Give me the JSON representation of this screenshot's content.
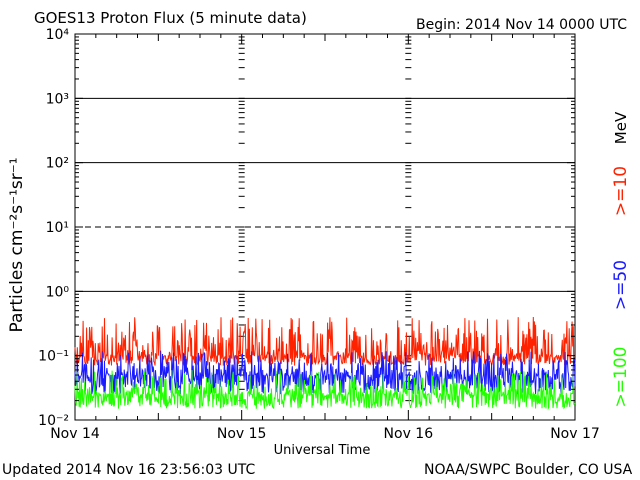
{
  "title": "GOES13 Proton Flux (5 minute data)",
  "begin_label": "Begin: 2014 Nov 14 0000 UTC",
  "updated_label": "Updated 2014 Nov 16 23:56:03 UTC",
  "credit_label": "NOAA/SWPC Boulder, CO USA",
  "chart_data": {
    "type": "line",
    "title": "GOES13 Proton Flux (5 minute data)",
    "xlabel": "Universal Time",
    "ylabel": "Particles cm⁻²s⁻¹sr⁻¹",
    "y_scale": "log",
    "ylim": [
      0.01,
      10000
    ],
    "y_ticks": [
      "10⁻²",
      "10⁻¹",
      "10⁰",
      "10¹",
      "10²",
      "10³",
      "10⁴"
    ],
    "x_ticks": [
      "Nov 14",
      "Nov 15",
      "Nov 16",
      "Nov 17"
    ],
    "xlim_days": [
      0,
      3
    ],
    "threshold_lines": [
      {
        "value": 1,
        "style": "solid"
      },
      {
        "value": 10,
        "style": "dashed"
      },
      {
        "value": 100,
        "style": "solid"
      },
      {
        "value": 1000,
        "style": "solid"
      }
    ],
    "grid": false,
    "unit_label": "MeV",
    "series": [
      {
        "name": ">=10",
        "color": "#ff2200",
        "typical_value": 0.1,
        "min_value": 0.07,
        "max_value": 0.4
      },
      {
        "name": ">=50",
        "color": "#1a1aff",
        "typical_value": 0.05,
        "min_value": 0.025,
        "max_value": 0.12
      },
      {
        "name": ">=100",
        "color": "#22ff00",
        "typical_value": 0.025,
        "min_value": 0.015,
        "max_value": 0.06
      }
    ]
  }
}
